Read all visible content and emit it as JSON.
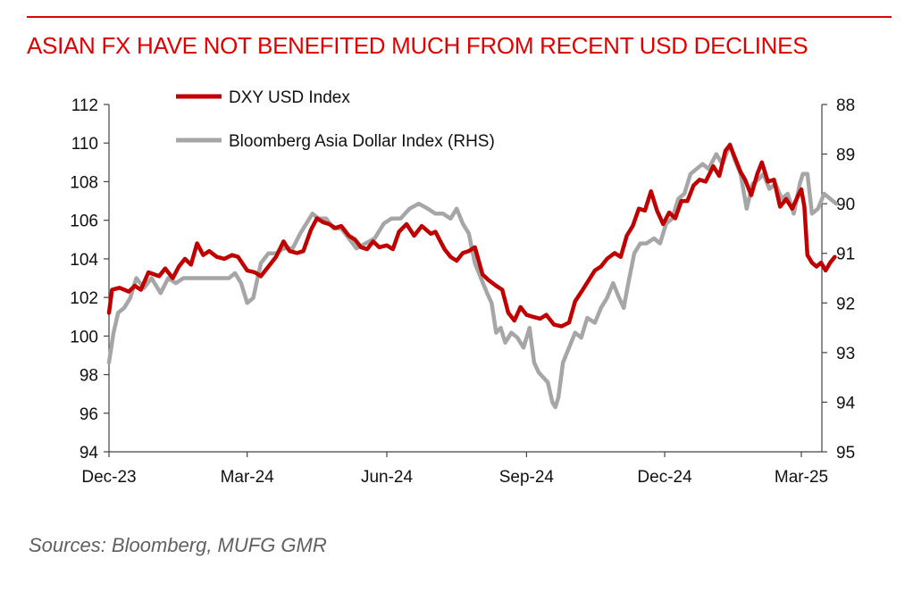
{
  "header": {
    "title": "ASIAN FX HAVE NOT BENEFITED MUCH FROM RECENT USD DECLINES"
  },
  "footer": {
    "source": "Sources:  Bloomberg, MUFG GMR"
  },
  "colors": {
    "accent": "#e00000",
    "dxy": "#c00000",
    "asia": "#a6a6a6"
  },
  "chart_data": {
    "type": "line",
    "xlabels": [
      "Dec-23",
      "Mar-24",
      "Jun-24",
      "Sep-24",
      "Dec-24",
      "Mar-25"
    ],
    "x_range": [
      "2023-12-01",
      "2025-03-01"
    ],
    "y_left": {
      "range": [
        94,
        112
      ],
      "ticks": [
        "94",
        "96",
        "98",
        "100",
        "102",
        "104",
        "106",
        "108",
        "110",
        "112"
      ]
    },
    "y_right": {
      "range": [
        95,
        88
      ],
      "inverted": true,
      "ticks": [
        "88",
        "89",
        "90",
        "91",
        "92",
        "93",
        "94",
        "95"
      ]
    },
    "legend": "top-left",
    "series": [
      {
        "name": "DXY USD Index",
        "axis": "left",
        "color": "#c00000",
        "points": [
          [
            "2023-12-01",
            101.2
          ],
          [
            "2023-12-03",
            102.4
          ],
          [
            "2023-12-08",
            102.5
          ],
          [
            "2023-12-14",
            102.3
          ],
          [
            "2023-12-18",
            102.6
          ],
          [
            "2023-12-22",
            102.4
          ],
          [
            "2023-12-27",
            103.3
          ],
          [
            "2024-01-03",
            103.1
          ],
          [
            "2024-01-07",
            103.5
          ],
          [
            "2024-01-12",
            103.0
          ],
          [
            "2024-01-16",
            103.6
          ],
          [
            "2024-01-20",
            104.0
          ],
          [
            "2024-01-24",
            103.7
          ],
          [
            "2024-01-28",
            104.8
          ],
          [
            "2024-02-01",
            104.2
          ],
          [
            "2024-02-05",
            104.4
          ],
          [
            "2024-02-10",
            104.1
          ],
          [
            "2024-02-15",
            104.0
          ],
          [
            "2024-02-20",
            104.2
          ],
          [
            "2024-02-24",
            104.1
          ],
          [
            "2024-03-01",
            103.4
          ],
          [
            "2024-03-06",
            103.3
          ],
          [
            "2024-03-10",
            103.1
          ],
          [
            "2024-03-15",
            103.6
          ],
          [
            "2024-03-20",
            104.1
          ],
          [
            "2024-03-25",
            104.9
          ],
          [
            "2024-03-29",
            104.4
          ],
          [
            "2024-04-03",
            104.3
          ],
          [
            "2024-04-07",
            104.4
          ],
          [
            "2024-04-12",
            105.5
          ],
          [
            "2024-04-16",
            106.1
          ],
          [
            "2024-04-20",
            105.9
          ],
          [
            "2024-04-24",
            105.8
          ],
          [
            "2024-04-28",
            105.6
          ],
          [
            "2024-05-02",
            105.7
          ],
          [
            "2024-05-07",
            105.2
          ],
          [
            "2024-05-11",
            105.0
          ],
          [
            "2024-05-15",
            104.6
          ],
          [
            "2024-05-19",
            104.5
          ],
          [
            "2024-05-23",
            104.9
          ],
          [
            "2024-05-27",
            104.6
          ],
          [
            "2024-06-01",
            104.7
          ],
          [
            "2024-06-05",
            104.5
          ],
          [
            "2024-06-09",
            105.4
          ],
          [
            "2024-06-14",
            105.8
          ],
          [
            "2024-06-19",
            105.2
          ],
          [
            "2024-06-24",
            105.7
          ],
          [
            "2024-06-30",
            105.3
          ],
          [
            "2024-07-03",
            105.4
          ],
          [
            "2024-07-09",
            104.5
          ],
          [
            "2024-07-13",
            104.1
          ],
          [
            "2024-07-17",
            103.9
          ],
          [
            "2024-07-21",
            104.3
          ],
          [
            "2024-07-25",
            104.4
          ],
          [
            "2024-07-29",
            104.6
          ],
          [
            "2024-08-03",
            103.2
          ],
          [
            "2024-08-07",
            102.9
          ],
          [
            "2024-08-12",
            102.6
          ],
          [
            "2024-08-16",
            102.4
          ],
          [
            "2024-08-20",
            101.2
          ],
          [
            "2024-08-24",
            100.8
          ],
          [
            "2024-08-28",
            101.5
          ],
          [
            "2024-09-01",
            101.1
          ],
          [
            "2024-09-05",
            101.0
          ],
          [
            "2024-09-10",
            100.9
          ],
          [
            "2024-09-14",
            101.1
          ],
          [
            "2024-09-19",
            100.6
          ],
          [
            "2024-09-24",
            100.5
          ],
          [
            "2024-09-29",
            100.7
          ],
          [
            "2024-10-03",
            101.8
          ],
          [
            "2024-10-08",
            102.4
          ],
          [
            "2024-10-12",
            102.9
          ],
          [
            "2024-10-16",
            103.4
          ],
          [
            "2024-10-20",
            103.6
          ],
          [
            "2024-10-24",
            104.0
          ],
          [
            "2024-10-29",
            104.3
          ],
          [
            "2024-11-02",
            104.1
          ],
          [
            "2024-11-06",
            105.2
          ],
          [
            "2024-11-10",
            105.7
          ],
          [
            "2024-11-14",
            106.6
          ],
          [
            "2024-11-18",
            106.5
          ],
          [
            "2024-11-22",
            107.5
          ],
          [
            "2024-11-26",
            106.5
          ],
          [
            "2024-11-30",
            105.8
          ],
          [
            "2024-12-04",
            106.4
          ],
          [
            "2024-12-08",
            106.1
          ],
          [
            "2024-12-12",
            107.0
          ],
          [
            "2024-12-16",
            107.0
          ],
          [
            "2024-12-20",
            107.8
          ],
          [
            "2024-12-24",
            108.1
          ],
          [
            "2024-12-28",
            108.0
          ],
          [
            "2025-01-02",
            108.8
          ],
          [
            "2025-01-06",
            108.3
          ],
          [
            "2025-01-10",
            109.6
          ],
          [
            "2025-01-13",
            109.9
          ],
          [
            "2025-01-16",
            109.3
          ],
          [
            "2025-01-20",
            108.5
          ],
          [
            "2025-01-23",
            108.1
          ],
          [
            "2025-01-27",
            107.3
          ],
          [
            "2025-01-31",
            108.4
          ],
          [
            "2025-02-03",
            109.0
          ],
          [
            "2025-02-07",
            108.0
          ],
          [
            "2025-02-11",
            108.1
          ],
          [
            "2025-02-15",
            106.7
          ],
          [
            "2025-02-19",
            107.1
          ],
          [
            "2025-02-23",
            106.6
          ],
          [
            "2025-02-27",
            107.3
          ],
          [
            "2025-03-01",
            107.6
          ],
          [
            "2025-03-03",
            106.7
          ],
          [
            "2025-03-05",
            104.2
          ],
          [
            "2025-03-08",
            103.8
          ],
          [
            "2025-03-11",
            103.6
          ],
          [
            "2025-03-14",
            103.8
          ],
          [
            "2025-03-17",
            103.4
          ],
          [
            "2025-03-20",
            103.8
          ],
          [
            "2025-03-23",
            104.1
          ]
        ]
      },
      {
        "name": "Bloomberg Asia Dollar Index (RHS)",
        "axis": "right",
        "color": "#a6a6a6",
        "points": [
          [
            "2023-12-01",
            93.2
          ],
          [
            "2023-12-04",
            92.6
          ],
          [
            "2023-12-07",
            92.2
          ],
          [
            "2023-12-11",
            92.1
          ],
          [
            "2023-12-15",
            91.9
          ],
          [
            "2023-12-19",
            91.5
          ],
          [
            "2023-12-24",
            91.7
          ],
          [
            "2023-12-29",
            91.5
          ],
          [
            "2024-01-04",
            91.8
          ],
          [
            "2024-01-09",
            91.5
          ],
          [
            "2024-01-14",
            91.6
          ],
          [
            "2024-01-19",
            91.5
          ],
          [
            "2024-01-25",
            91.5
          ],
          [
            "2024-01-31",
            91.5
          ],
          [
            "2024-02-06",
            91.5
          ],
          [
            "2024-02-12",
            91.5
          ],
          [
            "2024-02-18",
            91.5
          ],
          [
            "2024-02-22",
            91.4
          ],
          [
            "2024-02-26",
            91.6
          ],
          [
            "2024-03-01",
            92.0
          ],
          [
            "2024-03-05",
            91.9
          ],
          [
            "2024-03-10",
            91.2
          ],
          [
            "2024-03-15",
            91.0
          ],
          [
            "2024-03-20",
            91.0
          ],
          [
            "2024-03-25",
            90.9
          ],
          [
            "2024-03-31",
            90.9
          ],
          [
            "2024-04-05",
            90.6
          ],
          [
            "2024-04-09",
            90.4
          ],
          [
            "2024-04-13",
            90.2
          ],
          [
            "2024-04-17",
            90.3
          ],
          [
            "2024-04-22",
            90.3
          ],
          [
            "2024-04-27",
            90.5
          ],
          [
            "2024-05-02",
            90.5
          ],
          [
            "2024-05-07",
            90.7
          ],
          [
            "2024-05-12",
            90.9
          ],
          [
            "2024-05-18",
            90.8
          ],
          [
            "2024-05-24",
            90.7
          ],
          [
            "2024-05-30",
            90.4
          ],
          [
            "2024-06-04",
            90.3
          ],
          [
            "2024-06-10",
            90.3
          ],
          [
            "2024-06-16",
            90.1
          ],
          [
            "2024-06-22",
            90.0
          ],
          [
            "2024-06-28",
            90.1
          ],
          [
            "2024-07-03",
            90.2
          ],
          [
            "2024-07-08",
            90.2
          ],
          [
            "2024-07-13",
            90.3
          ],
          [
            "2024-07-17",
            90.1
          ],
          [
            "2024-07-21",
            90.4
          ],
          [
            "2024-07-25",
            90.6
          ],
          [
            "2024-07-29",
            91.2
          ],
          [
            "2024-08-02",
            91.5
          ],
          [
            "2024-08-06",
            91.8
          ],
          [
            "2024-08-09",
            92.0
          ],
          [
            "2024-08-12",
            92.6
          ],
          [
            "2024-08-15",
            92.5
          ],
          [
            "2024-08-18",
            92.8
          ],
          [
            "2024-08-22",
            92.6
          ],
          [
            "2024-08-26",
            92.7
          ],
          [
            "2024-08-30",
            92.9
          ],
          [
            "2024-09-03",
            92.5
          ],
          [
            "2024-09-06",
            93.2
          ],
          [
            "2024-09-09",
            93.4
          ],
          [
            "2024-09-12",
            93.5
          ],
          [
            "2024-09-15",
            93.6
          ],
          [
            "2024-09-18",
            94.0
          ],
          [
            "2024-09-20",
            94.1
          ],
          [
            "2024-09-22",
            93.9
          ],
          [
            "2024-09-25",
            93.2
          ],
          [
            "2024-09-29",
            92.9
          ],
          [
            "2024-10-03",
            92.6
          ],
          [
            "2024-10-07",
            92.7
          ],
          [
            "2024-10-11",
            92.3
          ],
          [
            "2024-10-16",
            92.4
          ],
          [
            "2024-10-20",
            92.1
          ],
          [
            "2024-10-24",
            91.9
          ],
          [
            "2024-10-28",
            91.6
          ],
          [
            "2024-11-01",
            91.9
          ],
          [
            "2024-11-04",
            92.1
          ],
          [
            "2024-11-07",
            91.6
          ],
          [
            "2024-11-11",
            91.0
          ],
          [
            "2024-11-15",
            90.8
          ],
          [
            "2024-11-19",
            90.8
          ],
          [
            "2024-11-24",
            90.7
          ],
          [
            "2024-11-28",
            90.8
          ],
          [
            "2024-12-02",
            90.4
          ],
          [
            "2024-12-06",
            90.3
          ],
          [
            "2024-12-10",
            89.9
          ],
          [
            "2024-12-14",
            89.8
          ],
          [
            "2024-12-18",
            89.4
          ],
          [
            "2024-12-22",
            89.3
          ],
          [
            "2024-12-26",
            89.2
          ],
          [
            "2024-12-30",
            89.3
          ],
          [
            "2025-01-04",
            89.0
          ],
          [
            "2025-01-08",
            89.2
          ],
          [
            "2025-01-13",
            88.8
          ],
          [
            "2025-01-16",
            89.1
          ],
          [
            "2025-01-20",
            89.4
          ],
          [
            "2025-01-24",
            90.1
          ],
          [
            "2025-01-28",
            89.6
          ],
          [
            "2025-02-01",
            89.5
          ],
          [
            "2025-02-04",
            89.4
          ],
          [
            "2025-02-08",
            89.7
          ],
          [
            "2025-02-12",
            89.6
          ],
          [
            "2025-02-16",
            89.9
          ],
          [
            "2025-02-20",
            89.8
          ],
          [
            "2025-02-24",
            90.2
          ],
          [
            "2025-02-28",
            89.6
          ],
          [
            "2025-03-02",
            89.4
          ],
          [
            "2025-03-05",
            89.4
          ],
          [
            "2025-03-08",
            90.2
          ],
          [
            "2025-03-12",
            90.1
          ],
          [
            "2025-03-16",
            89.8
          ],
          [
            "2025-03-20",
            89.9
          ],
          [
            "2025-03-24",
            90.0
          ]
        ]
      }
    ]
  }
}
